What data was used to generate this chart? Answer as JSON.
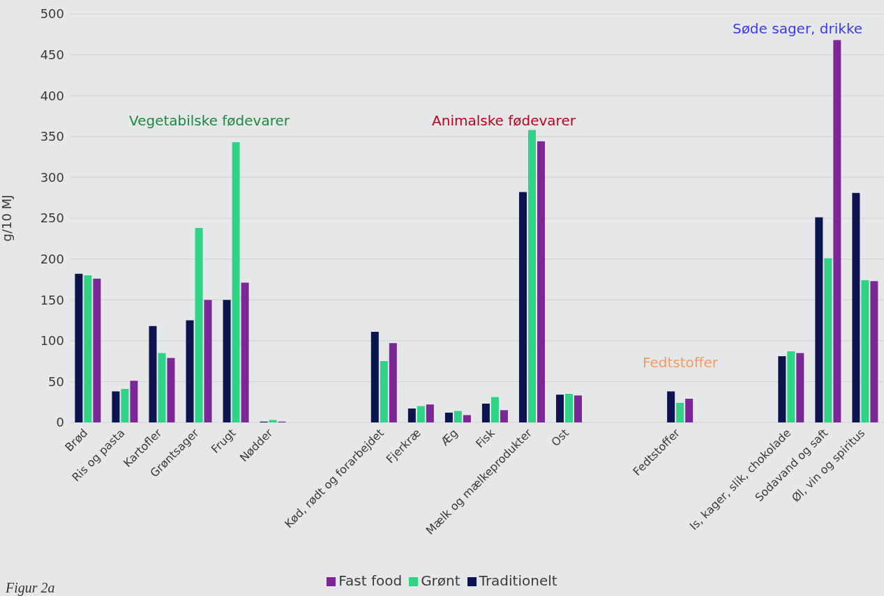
{
  "chart_data": {
    "type": "bar",
    "ylabel": "g/10 MJ",
    "categories": [
      "Brød",
      "Ris og pasta",
      "Kartofler",
      "Grøntsager",
      "Frugt",
      "Nødder",
      null,
      null,
      "Kød, rødt og forarbejdet",
      "Fjerkræ",
      "Æg",
      "Fisk",
      "Mælk og mælkeprodukter",
      "Ost",
      null,
      null,
      "Fedtstoffer",
      null,
      null,
      "Is, kager, slik, chokolade",
      "Sodavand og saft",
      "Øl, vin og spiritus"
    ],
    "series": [
      {
        "name": "Traditionelt",
        "color": "#0c1450",
        "values": [
          182,
          38,
          118,
          125,
          150,
          1,
          null,
          null,
          111,
          17,
          12,
          23,
          282,
          34,
          null,
          null,
          38,
          null,
          null,
          81,
          251,
          281
        ]
      },
      {
        "name": "Grønt",
        "color": "#2ed386",
        "values": [
          180,
          41,
          85,
          238,
          343,
          3,
          null,
          null,
          75,
          20,
          14,
          31,
          358,
          35,
          null,
          null,
          24,
          null,
          null,
          87,
          201,
          174
        ]
      },
      {
        "name": "Fast food",
        "color": "#7b2796",
        "values": [
          176,
          51,
          79,
          150,
          171,
          1,
          null,
          null,
          97,
          22,
          9,
          15,
          344,
          33,
          null,
          null,
          29,
          null,
          null,
          85,
          468,
          173
        ]
      }
    ],
    "ylim": [
      0,
      500
    ],
    "yticks": [
      0,
      50,
      100,
      150,
      200,
      250,
      300,
      350,
      400,
      450,
      500
    ],
    "grid": "y",
    "legend": "bottom",
    "annotations": [
      "Vegetabilske fødevarer",
      "Animalske fødevarer",
      "Fedtstoffer",
      "Søde sager, drikke",
      "Figur 2a"
    ]
  }
}
